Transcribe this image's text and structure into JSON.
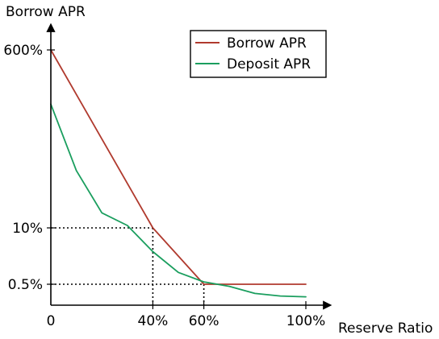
{
  "chart_data": {
    "type": "line",
    "title": "",
    "xlabel": "Reserve Ratio",
    "ylabel": "Borrow APR",
    "x_ticks": [
      "0",
      "40%",
      "60%",
      "100%"
    ],
    "y_ticks": [
      "0.5%",
      "10%",
      "600%"
    ],
    "legend": {
      "placement": "top-right",
      "entries": [
        "Borrow APR",
        "Deposit APR"
      ]
    },
    "grid": false,
    "series": [
      {
        "name": "Borrow APR",
        "color": "#b03a2e",
        "x": [
          0,
          40,
          60,
          100
        ],
        "y": [
          600,
          10,
          0.5,
          0.5
        ]
      },
      {
        "name": "Deposit APR",
        "color": "#1a9e5e",
        "x": [
          0,
          10,
          20,
          30,
          40,
          50,
          60,
          70,
          80,
          90,
          100
        ],
        "y": [
          420,
          200,
          60,
          18,
          6,
          2.5,
          0.9,
          0.45,
          0.28,
          0.22,
          0.2
        ]
      }
    ],
    "reference_lines": [
      {
        "x": 40,
        "y": 10
      },
      {
        "x": 60,
        "y": 0.5
      }
    ]
  }
}
